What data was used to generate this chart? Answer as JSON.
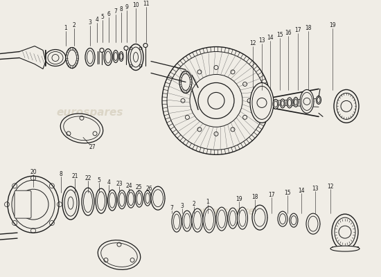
{
  "bg_color": "#f0ede6",
  "watermark_color": "#c8bfa8",
  "watermark_alpha": 0.5,
  "fig_width": 5.5,
  "fig_height": 4.0,
  "dpi": 100,
  "line_color": "#1a1a1a",
  "gray": "#666666"
}
